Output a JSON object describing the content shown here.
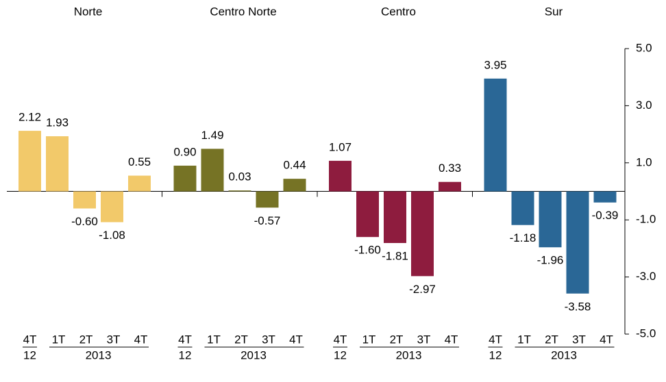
{
  "chart_data": {
    "type": "bar",
    "categories": [
      "4T",
      "1T",
      "2T",
      "3T",
      "4T"
    ],
    "years": [
      "12",
      "2013"
    ],
    "series": [
      {
        "name": "Norte",
        "color": "#f2c96a",
        "values": [
          2.12,
          1.93,
          -0.6,
          -1.08,
          0.55
        ],
        "value_labels": [
          "2.12",
          "1.93",
          "-0.60",
          "-1.08",
          "0.55"
        ]
      },
      {
        "name": "Centro Norte",
        "color": "#767325",
        "values": [
          0.9,
          1.49,
          0.03,
          -0.57,
          0.44
        ],
        "value_labels": [
          "0.90",
          "1.49",
          "0.03",
          "-0.57",
          "0.44"
        ]
      },
      {
        "name": "Centro",
        "color": "#8e1c3e",
        "values": [
          1.07,
          -1.6,
          -1.81,
          -2.97,
          0.33
        ],
        "value_labels": [
          "1.07",
          "-1.60",
          "-1.81",
          "-2.97",
          "0.33"
        ]
      },
      {
        "name": "Sur",
        "color": "#2a6796",
        "values": [
          3.95,
          -1.18,
          -1.96,
          -3.58,
          -0.39
        ],
        "value_labels": [
          "3.95",
          "-1.18",
          "-1.96",
          "-3.58",
          "-0.39"
        ]
      }
    ],
    "ylim": [
      -5,
      5
    ],
    "yticks": [
      {
        "value": 5,
        "label": "5.0"
      },
      {
        "value": 3,
        "label": "3.0"
      },
      {
        "value": 1,
        "label": "1.0"
      },
      {
        "value": -1,
        "label": "-1.0"
      },
      {
        "value": -3,
        "label": "-3.0"
      },
      {
        "value": -5,
        "label": "-5.0"
      }
    ]
  }
}
